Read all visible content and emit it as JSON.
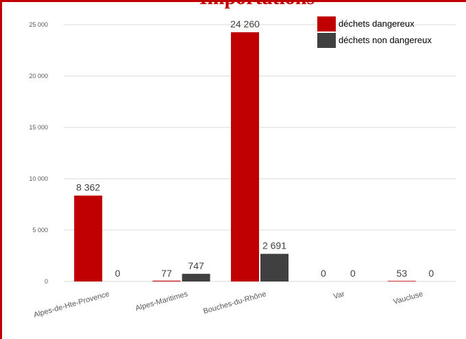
{
  "chart_data": {
    "type": "bar",
    "title": "Importations",
    "categories": [
      "Alpes-de-Hte-Provence",
      "Alpes-Maritimes",
      "Bouches-du-Rhône",
      "Var",
      "Vaucluse"
    ],
    "series": [
      {
        "name": "déchets dangereux",
        "color": "#c00000",
        "values": [
          8362,
          77,
          24260,
          0,
          53
        ],
        "labels": [
          "8 362",
          "77",
          "24 260",
          "0",
          "53"
        ]
      },
      {
        "name": "déchets non dangereux",
        "color": "#404040",
        "values": [
          0,
          747,
          2691,
          0,
          0
        ],
        "labels": [
          "0",
          "747",
          "2 691",
          "0",
          "0"
        ]
      }
    ],
    "yticks": [
      0,
      5000,
      10000,
      15000,
      20000,
      25000
    ],
    "ytick_labels": [
      "0",
      "5 000",
      "10 000",
      "15 000",
      "20 000",
      "25 000"
    ],
    "ylim": [
      0,
      25000
    ],
    "grid": true,
    "legend_position": "top-right",
    "frame_color": "#c00000"
  }
}
